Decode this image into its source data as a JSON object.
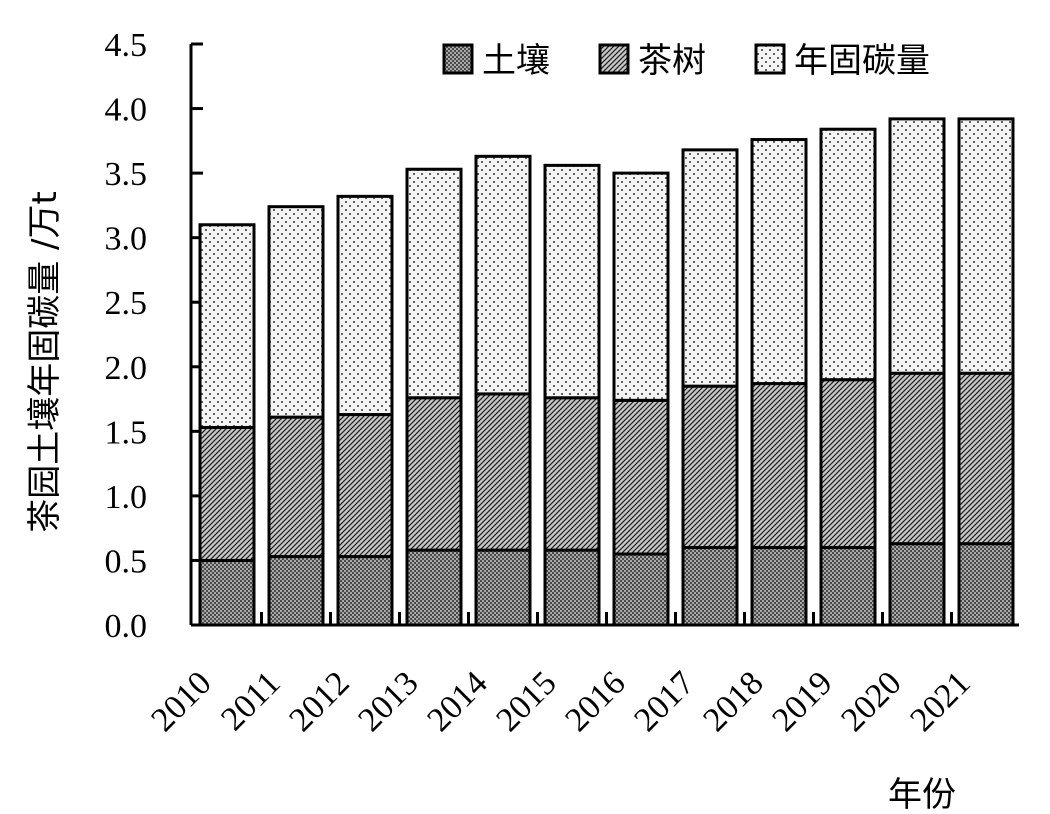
{
  "chart_data": {
    "type": "bar",
    "stacked": true,
    "title": "",
    "xlabel": "年份",
    "ylabel": "茶园土壤年固碳量 /万t",
    "ylim": [
      0,
      4.5
    ],
    "yticks": [
      "0.0",
      "0.5",
      "1.0",
      "1.5",
      "2.0",
      "2.5",
      "3.0",
      "3.5",
      "4.0",
      "4.5"
    ],
    "grid": false,
    "legend_position": "top-right",
    "categories": [
      "2010",
      "2011",
      "2012",
      "2013",
      "2014",
      "2015",
      "2016",
      "2017",
      "2018",
      "2019",
      "2020",
      "2021"
    ],
    "series": [
      {
        "name": "土壤",
        "pattern": "dense-dots",
        "values": [
          0.5,
          0.53,
          0.53,
          0.58,
          0.58,
          0.58,
          0.55,
          0.6,
          0.6,
          0.6,
          0.63,
          0.63
        ]
      },
      {
        "name": "茶树",
        "pattern": "diagonal-hatch",
        "values": [
          1.03,
          1.08,
          1.1,
          1.18,
          1.21,
          1.18,
          1.19,
          1.25,
          1.27,
          1.3,
          1.32,
          1.32
        ]
      },
      {
        "name": "年固碳量",
        "pattern": "sparse-dots",
        "values": [
          1.57,
          1.63,
          1.69,
          1.77,
          1.84,
          1.8,
          1.76,
          1.83,
          1.89,
          1.94,
          1.97,
          1.97
        ]
      }
    ]
  }
}
